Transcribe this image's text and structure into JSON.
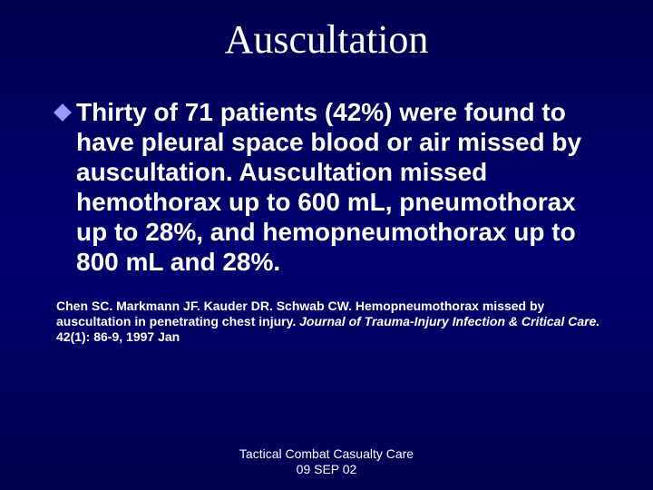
{
  "colors": {
    "background": "#000066",
    "text": "#ffffff",
    "bullet": "#9999ff"
  },
  "typography": {
    "title_font": "Times New Roman",
    "body_font": "Arial",
    "title_size_pt": 44,
    "body_size_pt": 28,
    "citation_size_pt": 14,
    "footer_size_pt": 14,
    "body_weight": "bold",
    "citation_weight": "bold"
  },
  "title": "Auscultation",
  "body": "Thirty of 71 patients (42%) were found to have pleural space blood or air missed by auscultation. Auscultation missed hemothorax up to 600 mL, pneumothorax up to 28%, and hemopneumothorax up to 800 mL and 28%.",
  "citation": {
    "authors": "Chen SC. Markmann JF. Kauder DR. Schwab CW.",
    "article_title": "Hemopneumothorax missed by auscultation in penetrating chest injury.",
    "journal": "Journal of Trauma-Injury Infection & Critical Care.",
    "locator": "42(1): 86-9, 1997 Jan"
  },
  "footer": {
    "line1": "Tactical Combat Casualty Care",
    "line2": "09 SEP 02"
  }
}
